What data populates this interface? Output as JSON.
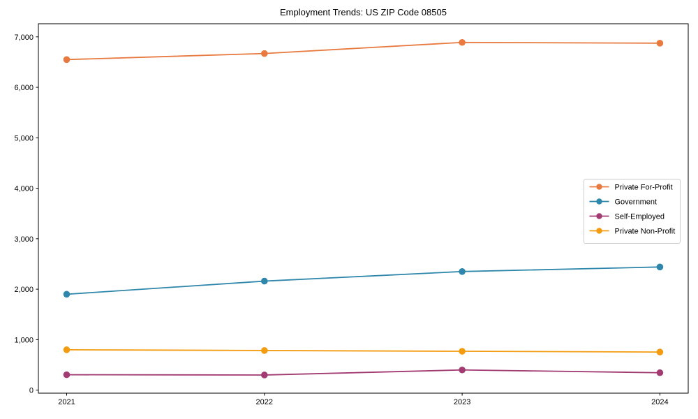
{
  "title": "Employment Trends: US ZIP Code 08505",
  "chart_data": {
    "type": "line",
    "title": "Employment Trends: US ZIP Code 08505",
    "xlabel": "",
    "ylabel": "",
    "x": [
      "2021",
      "2022",
      "2023",
      "2024"
    ],
    "series": [
      {
        "name": "Private For-Profit",
        "color": "#E8793F",
        "values": [
          6550,
          6670,
          6890,
          6875
        ]
      },
      {
        "name": "Government",
        "color": "#2E86AB",
        "values": [
          1900,
          2160,
          2350,
          2440
        ]
      },
      {
        "name": "Self-Employed",
        "color": "#A23B72",
        "values": [
          305,
          300,
          400,
          345
        ]
      },
      {
        "name": "Private Non-Profit",
        "color": "#F39C12",
        "values": [
          800,
          785,
          770,
          755
        ]
      }
    ],
    "ylim": [
      -60,
      7260
    ],
    "yticks": [
      0,
      1000,
      2000,
      3000,
      4000,
      5000,
      6000,
      7000
    ],
    "ytick_labels": [
      "0",
      "1,000",
      "2,000",
      "3,000",
      "4,000",
      "5,000",
      "6,000",
      "7,000"
    ],
    "grid": false,
    "legend_position": "center right",
    "marker": "o",
    "axis_color": "#000000",
    "legend_border_color": "#cccccc",
    "background_color": "#ffffff"
  }
}
